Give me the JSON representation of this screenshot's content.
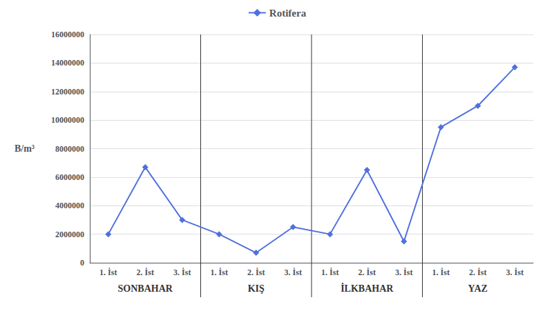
{
  "chart_data": {
    "type": "line",
    "categories": [
      "1. İst",
      "2. İst",
      "3. İst",
      "1. İst",
      "2. İst",
      "3. İst",
      "1. İst",
      "2. İst",
      "3. İst",
      "1. İst",
      "2. İst",
      "3. İst"
    ],
    "series": [
      {
        "name": "Rotifera",
        "values": [
          2000000,
          6700000,
          3000000,
          2000000,
          700000,
          2500000,
          2000000,
          6500000,
          1500000,
          9500000,
          11000000,
          13700000
        ],
        "marker": "diamond"
      }
    ],
    "ylabel": "B/m³",
    "annotations": [
      "SONBAHAR",
      "KIŞ",
      "İLKBAHAR",
      "YAZ"
    ],
    "ylim": [
      0,
      16000000
    ],
    "yticks": [
      0,
      2000000,
      4000000,
      6000000,
      8000000,
      10000000,
      12000000,
      14000000,
      16000000
    ],
    "grid": true,
    "legend": "top"
  }
}
